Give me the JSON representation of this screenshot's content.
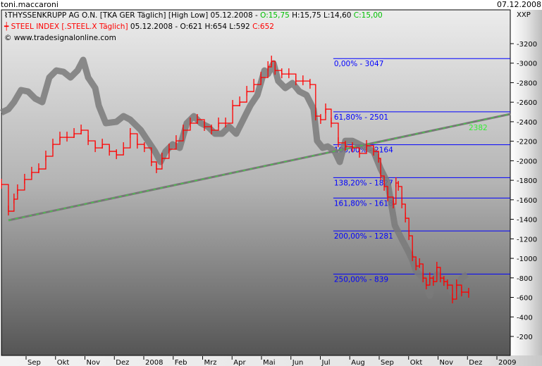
{
  "header": {
    "user": "toni.maccaroni",
    "date": "07.12.2008",
    "axis_label": "XXP"
  },
  "legend": {
    "line1": {
      "name": "THYSSENKRUPP AG O.N. [TKA GER  Täglich] [High Low] 05.12.2008 - ",
      "open": "O:15,75",
      "high_low": " H:15,75 L:14,60 ",
      "close": "C:15,00"
    },
    "line2": {
      "name": "STEEL INDEX [.STEEL.X  Täglich]",
      "ohl": " 05.12.2008 - O:621 H:654 L:592 ",
      "close": "C:652"
    },
    "line3": "© www.tradesignalonline.com"
  },
  "colors": {
    "steel": "#ff0000",
    "thyssen": "#7a7a7a",
    "fib": "#0000ff",
    "trend": "#33ee33",
    "open_close_green": "#00c000"
  },
  "chart_data": {
    "type": "line",
    "x_unit": "months since 1 Sep 2007",
    "x_ticks": [
      "Sep",
      "Okt",
      "Nov",
      "Dez",
      "2008",
      "Feb",
      "Mrz",
      "Apr",
      "Mai",
      "Jun",
      "Jul",
      "Aug",
      "Sep",
      "Okt",
      "Nov",
      "Dez",
      "2009"
    ],
    "y_ticks": [
      200,
      400,
      600,
      800,
      1000,
      1200,
      1400,
      1600,
      1800,
      2000,
      2200,
      2400,
      2600,
      2800,
      3000,
      3200
    ],
    "ylim": [
      100,
      3500
    ],
    "series": [
      {
        "name": "THYSSENKRUPP AG O.N.",
        "style": "band",
        "x": [
          -0.84,
          -0.6,
          -0.41,
          -0.17,
          0.07,
          0.31,
          0.55,
          0.79,
          1.03,
          1.27,
          1.51,
          1.75,
          1.94,
          2.11,
          2.35,
          2.47,
          2.71,
          3.07,
          3.31,
          3.54,
          3.9,
          4.14,
          4.38,
          4.57,
          4.74,
          4.98,
          5.22,
          5.46,
          5.7,
          5.94,
          6.18,
          6.42,
          6.66,
          6.9,
          7.14,
          7.38,
          7.62,
          7.86,
          8.1,
          8.22,
          8.41,
          8.57,
          8.81,
          9.05,
          9.29,
          9.53,
          9.77,
          9.89,
          10.08,
          10.25,
          10.49,
          10.66,
          10.85,
          11.09,
          11.33,
          11.57,
          11.81,
          12.05,
          12.29,
          12.41,
          12.53,
          12.77,
          12.96,
          13.13,
          13.25,
          13.49,
          13.72,
          13.84,
          13.96,
          14.08,
          14.32,
          14.56,
          14.8,
          14.99
        ],
        "values": [
          2493,
          2529,
          2601,
          2724,
          2709,
          2637,
          2601,
          2853,
          2925,
          2911,
          2853,
          2925,
          3034,
          2853,
          2745,
          2565,
          2385,
          2399,
          2457,
          2421,
          2313,
          2204,
          2096,
          1988,
          2096,
          2168,
          2132,
          2385,
          2457,
          2385,
          2349,
          2277,
          2277,
          2349,
          2277,
          2421,
          2565,
          2673,
          2925,
          2889,
          2998,
          2817,
          2745,
          2796,
          2709,
          2673,
          2529,
          2204,
          2132,
          2147,
          2096,
          1988,
          2204,
          2204,
          2168,
          2132,
          2096,
          1916,
          1772,
          1556,
          1339,
          1195,
          1087,
          979,
          871,
          798,
          618,
          762,
          835,
          798,
          726,
          618,
          798,
          835
        ]
      },
      {
        "name": "STEEL INDEX",
        "style": "step",
        "x": [
          -0.84,
          -0.6,
          -0.41,
          -0.29,
          -0.05,
          0.19,
          0.43,
          0.67,
          0.91,
          1.15,
          1.39,
          1.63,
          1.87,
          2.11,
          2.35,
          2.59,
          2.83,
          3.07,
          3.31,
          3.54,
          3.78,
          4.02,
          4.26,
          4.43,
          4.62,
          4.86,
          5.1,
          5.34,
          5.58,
          5.82,
          6.06,
          6.3,
          6.54,
          6.78,
          7.02,
          7.26,
          7.5,
          7.74,
          7.98,
          8.22,
          8.34,
          8.46,
          8.69,
          8.93,
          9.17,
          9.41,
          9.65,
          9.84,
          10.01,
          10.18,
          10.37,
          10.61,
          10.85,
          11.09,
          11.33,
          11.57,
          11.81,
          11.98,
          12.05,
          12.17,
          12.29,
          12.48,
          12.57,
          12.65,
          12.77,
          12.89,
          13.01,
          13.13,
          13.25,
          13.37,
          13.49,
          13.6,
          13.72,
          13.84,
          13.96,
          14.08,
          14.2,
          14.32,
          14.49,
          14.63,
          14.8,
          15.04
        ],
        "values": [
          1757,
          1483,
          1606,
          1700,
          1808,
          1880,
          1916,
          2046,
          2168,
          2240,
          2240,
          2277,
          2313,
          2204,
          2132,
          2168,
          2096,
          2060,
          2132,
          2277,
          2168,
          2132,
          1988,
          1916,
          2024,
          2118,
          2204,
          2313,
          2385,
          2421,
          2349,
          2313,
          2385,
          2385,
          2565,
          2601,
          2709,
          2781,
          2853,
          2962,
          3019,
          2925,
          2889,
          2889,
          2817,
          2817,
          2781,
          2457,
          2421,
          2529,
          2385,
          2183,
          2147,
          2132,
          2075,
          2154,
          2096,
          2024,
          1844,
          1736,
          1628,
          1556,
          1772,
          1736,
          1556,
          1411,
          1231,
          1015,
          921,
          943,
          798,
          726,
          798,
          762,
          907,
          798,
          762,
          726,
          582,
          726,
          654,
          640
        ]
      }
    ],
    "trendline": {
      "x": [
        -0.6,
        16.46
      ],
      "values": [
        1390,
        2479
      ],
      "label": "2382"
    },
    "fibonacci": {
      "start_x": 10.44,
      "levels": [
        {
          "label": "0,00% - 3047",
          "value": 3047
        },
        {
          "label": "61,80% - 2501",
          "value": 2501
        },
        {
          "label": "100,00% - 2164",
          "value": 2164
        },
        {
          "label": "138,20% - 1827",
          "value": 1827
        },
        {
          "label": "161,80% - 1618",
          "value": 1618
        },
        {
          "label": "200,00% - 1281",
          "value": 1281
        },
        {
          "label": "250,00% - 839",
          "value": 839
        }
      ]
    }
  }
}
